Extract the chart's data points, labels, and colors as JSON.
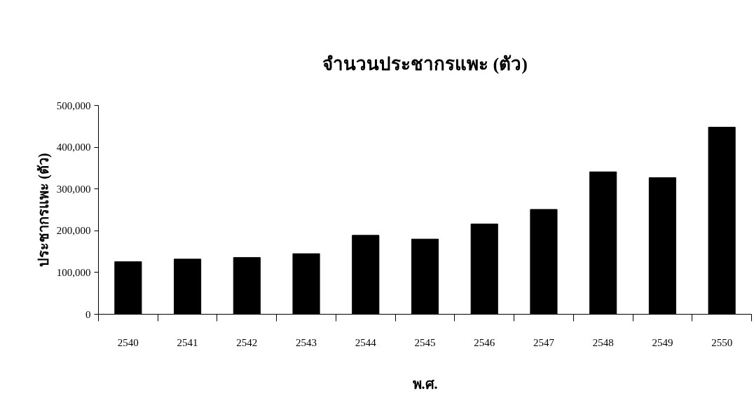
{
  "chart_data": {
    "type": "bar",
    "title": "จำนวนประชากรแพะ (ตัว)",
    "xlabel": "พ.ศ.",
    "ylabel": "ประชากรแพะ (ตัว)",
    "categories": [
      "2540",
      "2541",
      "2542",
      "2543",
      "2544",
      "2545",
      "2546",
      "2547",
      "2548",
      "2549",
      "2550"
    ],
    "values": [
      126000,
      132000,
      136000,
      145000,
      189000,
      180000,
      216000,
      251000,
      341000,
      327000,
      448000
    ],
    "color": "#000000",
    "ylim": [
      0,
      500000
    ],
    "yticks": [
      {
        "value": 0,
        "label": "0"
      },
      {
        "value": 100000,
        "label": "100,000"
      },
      {
        "value": 200000,
        "label": "200,000"
      },
      {
        "value": 300000,
        "label": "300,000"
      },
      {
        "value": 400000,
        "label": "400,000"
      },
      {
        "value": 500000,
        "label": "500,000"
      }
    ],
    "grid": false
  }
}
